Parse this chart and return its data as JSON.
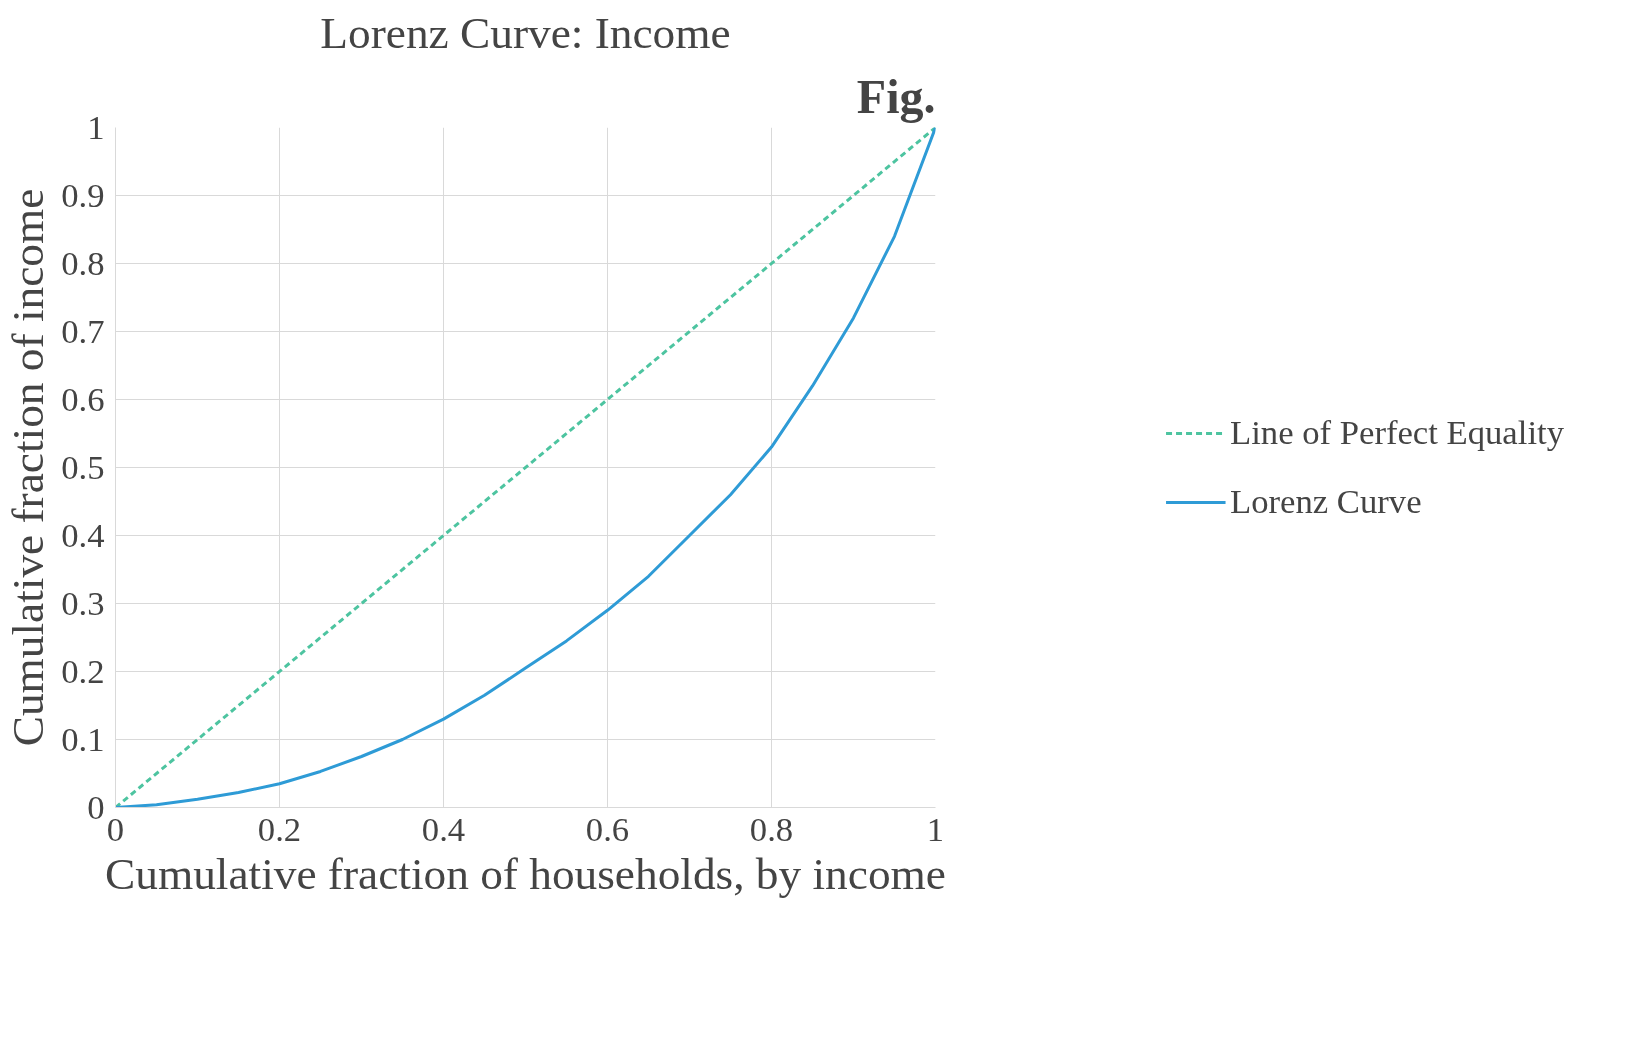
{
  "chart_data": {
    "type": "line",
    "title": "Lorenz Curve: Income",
    "xlabel": "Cumulative fraction of households, by income",
    "ylabel": "Cumulative fraction of income",
    "xlim": [
      0,
      1
    ],
    "ylim": [
      0,
      1
    ],
    "xticks": [
      0,
      0.2,
      0.4,
      0.6,
      0.8,
      1
    ],
    "yticks": [
      0,
      0.1,
      0.2,
      0.3,
      0.4,
      0.5,
      0.6,
      0.7,
      0.8,
      0.9,
      1
    ],
    "grid": true,
    "legend": "right",
    "marker": "none",
    "annotations": [
      "Fig."
    ],
    "series": [
      {
        "name": "Line of Perfect Equality",
        "color": "#4dc4a0",
        "line_style": "dashed",
        "x": [
          0,
          1
        ],
        "values": [
          0,
          1
        ]
      },
      {
        "name": "Lorenz Curve",
        "color": "#2e9bd6",
        "line_style": "solid",
        "x": [
          0,
          0.05,
          0.1,
          0.15,
          0.2,
          0.25,
          0.3,
          0.35,
          0.4,
          0.45,
          0.5,
          0.55,
          0.6,
          0.65,
          0.7,
          0.75,
          0.8,
          0.85,
          0.9,
          0.95,
          1
        ],
        "values": [
          0,
          0.004,
          0.012,
          0.022,
          0.035,
          0.053,
          0.075,
          0.1,
          0.13,
          0.165,
          0.205,
          0.245,
          0.29,
          0.34,
          0.4,
          0.46,
          0.53,
          0.62,
          0.72,
          0.84,
          1
        ]
      }
    ]
  }
}
